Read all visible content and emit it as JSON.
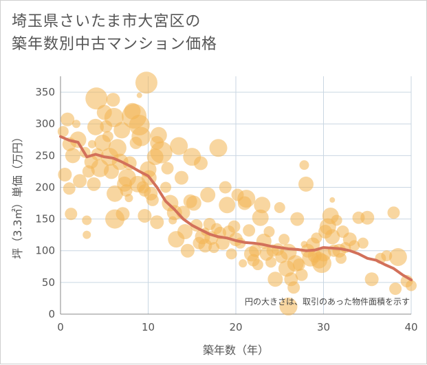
{
  "chart_data": {
    "type": "scatter",
    "title_lines": [
      "埼玉県さいたま市大宮区の",
      "築年数別中古マンション価格"
    ],
    "xlabel": "築年数（年）",
    "ylabel": "坪（3.3㎡）単価（万円）",
    "xlim": [
      0,
      40
    ],
    "ylim": [
      0,
      375
    ],
    "xticks": [
      0,
      10,
      20,
      30,
      40
    ],
    "yticks": [
      0,
      50,
      100,
      150,
      200,
      250,
      300,
      350
    ],
    "note": "円の大きさは、取引のあった物件面積を示す",
    "grid": true,
    "colors": {
      "bubble": "#f2b552",
      "trend": "#d2705a",
      "grid": "#c9d6e2",
      "axis": "#888888"
    },
    "bubbles": [
      [
        0.3,
        288,
        8
      ],
      [
        0.5,
        220,
        10
      ],
      [
        0.8,
        307,
        10
      ],
      [
        1.0,
        198,
        9
      ],
      [
        1.2,
        158,
        9
      ],
      [
        1.0,
        268,
        10
      ],
      [
        1.4,
        250,
        11
      ],
      [
        2.0,
        275,
        12
      ],
      [
        2.2,
        210,
        10
      ],
      [
        2.8,
        255,
        8
      ],
      [
        3.0,
        148,
        7
      ],
      [
        3.0,
        125,
        6
      ],
      [
        3.2,
        225,
        9
      ],
      [
        3.5,
        240,
        10
      ],
      [
        3.8,
        205,
        10
      ],
      [
        4.0,
        295,
        12
      ],
      [
        4.1,
        340,
        16
      ],
      [
        4.2,
        252,
        9
      ],
      [
        4.5,
        230,
        13
      ],
      [
        4.8,
        270,
        12
      ],
      [
        5.0,
        318,
        11
      ],
      [
        5.2,
        296,
        9
      ],
      [
        5.4,
        280,
        8
      ],
      [
        5.6,
        248,
        13
      ],
      [
        5.8,
        225,
        11
      ],
      [
        6.0,
        338,
        10
      ],
      [
        6.1,
        310,
        14
      ],
      [
        6.2,
        190,
        12
      ],
      [
        6.2,
        150,
        14
      ],
      [
        6.5,
        262,
        13
      ],
      [
        6.8,
        240,
        12
      ],
      [
        7.0,
        290,
        12
      ],
      [
        7.1,
        158,
        10
      ],
      [
        7.3,
        205,
        11
      ],
      [
        7.5,
        195,
        9
      ],
      [
        7.6,
        215,
        13
      ],
      [
        7.9,
        238,
        10
      ],
      [
        8.2,
        320,
        12
      ],
      [
        8.4,
        312,
        18
      ],
      [
        8.6,
        270,
        9
      ],
      [
        8.8,
        205,
        12
      ],
      [
        9.0,
        298,
        15
      ],
      [
        9.2,
        280,
        14
      ],
      [
        9.4,
        200,
        9
      ],
      [
        9.6,
        195,
        9
      ],
      [
        9.6,
        155,
        10
      ],
      [
        9.8,
        365,
        16
      ],
      [
        10.0,
        228,
        12
      ],
      [
        10.1,
        215,
        11
      ],
      [
        10.3,
        190,
        10
      ],
      [
        10.5,
        180,
        9
      ],
      [
        10.8,
        248,
        12
      ],
      [
        11.0,
        270,
        10
      ],
      [
        11.2,
        282,
        12
      ],
      [
        11.0,
        145,
        10
      ],
      [
        11.5,
        255,
        16
      ],
      [
        12.0,
        200,
        8
      ],
      [
        12.2,
        230,
        9
      ],
      [
        12.5,
        175,
        12
      ],
      [
        13.0,
        160,
        11
      ],
      [
        13.2,
        118,
        12
      ],
      [
        13.5,
        265,
        13
      ],
      [
        13.8,
        215,
        10
      ],
      [
        14.0,
        160,
        10
      ],
      [
        14.2,
        130,
        11
      ],
      [
        14.5,
        100,
        10
      ],
      [
        14.8,
        178,
        10
      ],
      [
        15.0,
        248,
        13
      ],
      [
        15.2,
        175,
        11
      ],
      [
        15.5,
        140,
        9
      ],
      [
        15.8,
        112,
        9
      ],
      [
        16.0,
        238,
        10
      ],
      [
        16.2,
        122,
        11
      ],
      [
        16.5,
        108,
        10
      ],
      [
        16.8,
        188,
        11
      ],
      [
        17.0,
        142,
        9
      ],
      [
        17.2,
        120,
        10
      ],
      [
        17.5,
        105,
        8
      ],
      [
        17.8,
        135,
        8
      ],
      [
        18.0,
        262,
        13
      ],
      [
        18.2,
        128,
        9
      ],
      [
        18.5,
        112,
        10
      ],
      [
        18.8,
        200,
        9
      ],
      [
        19.0,
        172,
        12
      ],
      [
        19.2,
        130,
        9
      ],
      [
        19.5,
        95,
        8
      ],
      [
        19.8,
        138,
        9
      ],
      [
        20.0,
        118,
        10
      ],
      [
        20.2,
        188,
        9
      ],
      [
        20.5,
        112,
        8
      ],
      [
        21.0,
        175,
        10
      ],
      [
        21.2,
        182,
        13
      ],
      [
        21.5,
        132,
        9
      ],
      [
        21.8,
        95,
        11
      ],
      [
        22.0,
        85,
        9
      ],
      [
        22.2,
        100,
        9
      ],
      [
        22.5,
        78,
        8
      ],
      [
        22.8,
        152,
        12
      ],
      [
        23.0,
        172,
        12
      ],
      [
        23.2,
        115,
        11
      ],
      [
        23.5,
        95,
        10
      ],
      [
        23.8,
        130,
        8
      ],
      [
        24.0,
        82,
        8
      ],
      [
        24.2,
        100,
        9
      ],
      [
        24.5,
        55,
        11
      ],
      [
        24.8,
        102,
        9
      ],
      [
        25.0,
        168,
        8
      ],
      [
        25.2,
        90,
        9
      ],
      [
        25.5,
        118,
        8
      ],
      [
        25.8,
        72,
        12
      ],
      [
        26.0,
        12,
        13
      ],
      [
        26.0,
        98,
        12
      ],
      [
        26.3,
        55,
        10
      ],
      [
        26.6,
        42,
        9
      ],
      [
        26.8,
        80,
        12
      ],
      [
        27.0,
        150,
        10
      ],
      [
        27.2,
        78,
        9
      ],
      [
        27.5,
        62,
        9
      ],
      [
        27.8,
        235,
        7
      ],
      [
        28.0,
        205,
        11
      ],
      [
        28.2,
        100,
        10
      ],
      [
        28.5,
        88,
        12
      ],
      [
        28.8,
        110,
        10
      ],
      [
        29.0,
        92,
        10
      ],
      [
        29.2,
        120,
        8
      ],
      [
        29.5,
        85,
        12
      ],
      [
        29.8,
        80,
        14
      ],
      [
        30.0,
        95,
        11
      ],
      [
        30.2,
        130,
        10
      ],
      [
        30.5,
        138,
        12
      ],
      [
        30.8,
        155,
        12
      ],
      [
        31.0,
        122,
        11
      ],
      [
        31.2,
        100,
        9
      ],
      [
        31.5,
        148,
        8
      ],
      [
        31.8,
        100,
        10
      ],
      [
        32.0,
        88,
        8
      ],
      [
        32.2,
        130,
        9
      ],
      [
        32.5,
        105,
        8
      ],
      [
        33.0,
        118,
        10
      ],
      [
        33.5,
        108,
        8
      ],
      [
        34.0,
        152,
        9
      ],
      [
        34.5,
        112,
        8
      ],
      [
        35.0,
        152,
        10
      ],
      [
        35.5,
        55,
        10
      ],
      [
        36.5,
        88,
        8
      ],
      [
        37.2,
        92,
        8
      ],
      [
        38.0,
        160,
        9
      ],
      [
        38.2,
        40,
        9
      ],
      [
        38.5,
        90,
        13
      ],
      [
        39.5,
        52,
        9
      ],
      [
        40.0,
        45,
        8
      ],
      [
        1.8,
        300,
        6
      ],
      [
        3.6,
        268,
        6
      ],
      [
        7.8,
        183,
        6
      ],
      [
        9.0,
        345,
        4
      ],
      [
        12.8,
        148,
        6
      ],
      [
        16.5,
        130,
        6
      ],
      [
        20.8,
        80,
        6
      ],
      [
        27.8,
        110,
        5
      ],
      [
        31.0,
        180,
        4
      ]
    ],
    "trend": [
      [
        0,
        280
      ],
      [
        1,
        274
      ],
      [
        2,
        271
      ],
      [
        3,
        248
      ],
      [
        4,
        252
      ],
      [
        5,
        248
      ],
      [
        6,
        246
      ],
      [
        7,
        240
      ],
      [
        8,
        233
      ],
      [
        9,
        225
      ],
      [
        10,
        218
      ],
      [
        11,
        200
      ],
      [
        12,
        178
      ],
      [
        13,
        165
      ],
      [
        14,
        150
      ],
      [
        15,
        140
      ],
      [
        16,
        133
      ],
      [
        17,
        126
      ],
      [
        18,
        122
      ],
      [
        19,
        120
      ],
      [
        20,
        116
      ],
      [
        21,
        113
      ],
      [
        22,
        112
      ],
      [
        23,
        110
      ],
      [
        24,
        107
      ],
      [
        25,
        105
      ],
      [
        26,
        103
      ],
      [
        27,
        102
      ],
      [
        28,
        100
      ],
      [
        29,
        101
      ],
      [
        30,
        105
      ],
      [
        31,
        104
      ],
      [
        32,
        103
      ],
      [
        33,
        100
      ],
      [
        34,
        95
      ],
      [
        35,
        88
      ],
      [
        36,
        85
      ],
      [
        37,
        78
      ],
      [
        38,
        72
      ],
      [
        39,
        62
      ],
      [
        40,
        54
      ]
    ]
  }
}
